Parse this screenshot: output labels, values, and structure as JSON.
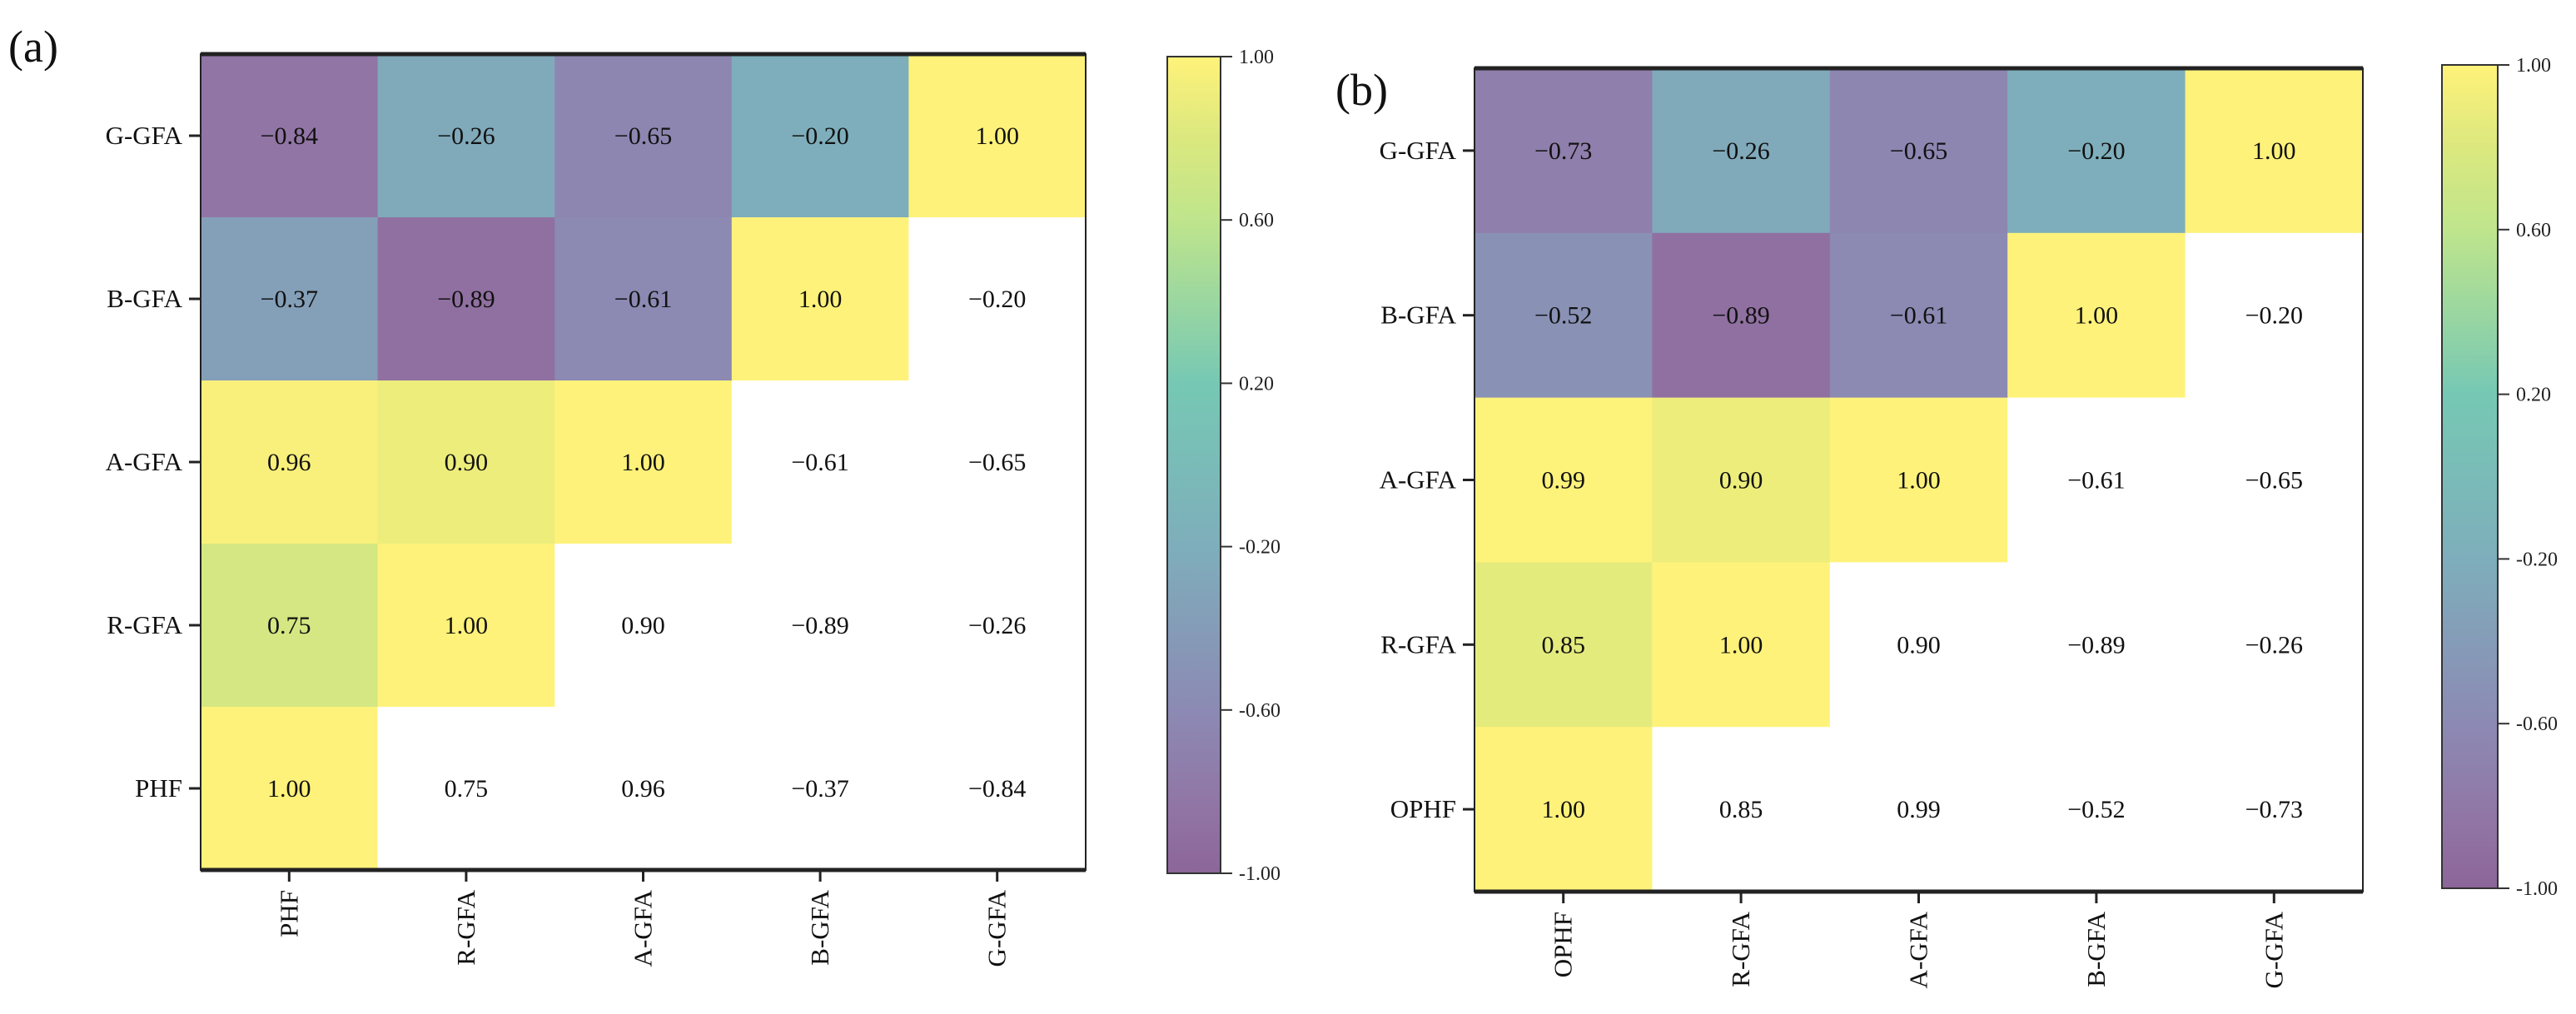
{
  "chart_data": [
    {
      "type": "heatmap",
      "panel_label": "(a)",
      "x_labels": [
        "PHF",
        "R-GFA",
        "A-GFA",
        "B-GFA",
        "G-GFA"
      ],
      "y_labels": [
        "G-GFA",
        "B-GFA",
        "A-GFA",
        "R-GFA",
        "PHF"
      ],
      "values": [
        [
          "−0.84",
          "−0.26",
          "−0.65",
          "−0.20",
          "1.00"
        ],
        [
          "−0.37",
          "−0.89",
          "−0.61",
          "1.00",
          "−0.20"
        ],
        [
          "0.96",
          "0.90",
          "1.00",
          "−0.61",
          "−0.65"
        ],
        [
          "0.75",
          "1.00",
          "0.90",
          "−0.89",
          "−0.26"
        ],
        [
          "1.00",
          "0.75",
          "0.96",
          "−0.37",
          "−0.84"
        ]
      ],
      "colored_region": "lower-left triangle",
      "colorbar": {
        "range": [
          -1,
          1
        ],
        "ticks": [
          "1.00",
          "0.60",
          "0.20",
          "-0.20",
          "-0.60",
          "-1.00"
        ]
      }
    },
    {
      "type": "heatmap",
      "panel_label": "(b)",
      "x_labels": [
        "OPHF",
        "R-GFA",
        "A-GFA",
        "B-GFA",
        "G-GFA"
      ],
      "y_labels": [
        "G-GFA",
        "B-GFA",
        "A-GFA",
        "R-GFA",
        "OPHF"
      ],
      "values": [
        [
          "−0.73",
          "−0.26",
          "−0.65",
          "−0.20",
          "1.00"
        ],
        [
          "−0.52",
          "−0.89",
          "−0.61",
          "1.00",
          "−0.20"
        ],
        [
          "0.99",
          "0.90",
          "1.00",
          "−0.61",
          "−0.65"
        ],
        [
          "0.85",
          "1.00",
          "0.90",
          "−0.89",
          "−0.26"
        ],
        [
          "1.00",
          "0.85",
          "0.99",
          "−0.52",
          "−0.73"
        ]
      ],
      "colored_region": "lower-left triangle",
      "colorbar": {
        "range": [
          -1,
          1
        ],
        "ticks": [
          "1.00",
          "0.60",
          "0.20",
          "-0.20",
          "-0.60",
          "-1.00"
        ]
      }
    }
  ],
  "colormap": [
    {
      "v": -1.0,
      "color": "#8c6699"
    },
    {
      "v": -0.85,
      "color": "#9174a4"
    },
    {
      "v": -0.6,
      "color": "#8c8ab4"
    },
    {
      "v": -0.2,
      "color": "#7eaebb"
    },
    {
      "v": 0.2,
      "color": "#76c8b4"
    },
    {
      "v": 0.6,
      "color": "#bfe58c"
    },
    {
      "v": 0.8,
      "color": "#dbe87e"
    },
    {
      "v": 1.0,
      "color": "#fff27a"
    }
  ]
}
